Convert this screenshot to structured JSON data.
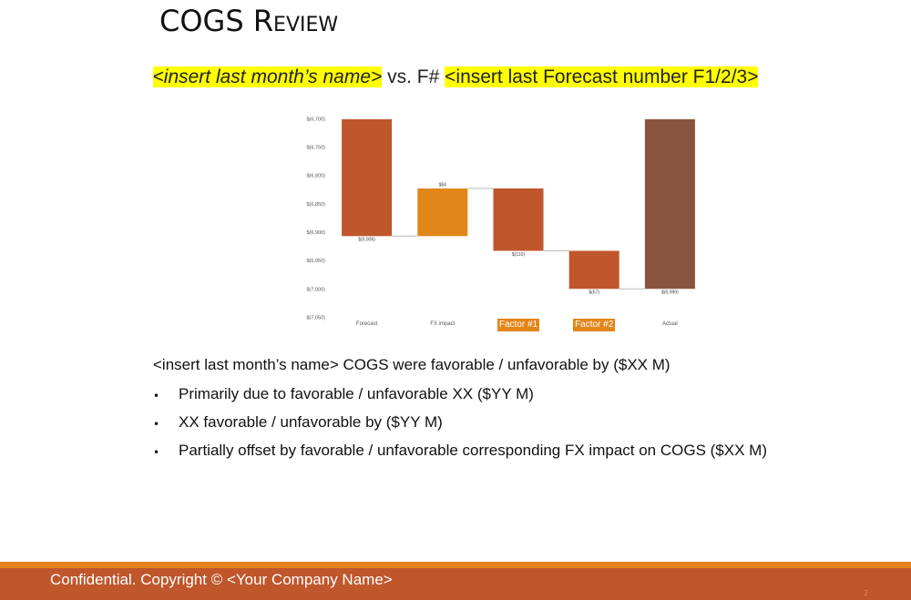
{
  "title": "COGS Review",
  "subtitle": {
    "highlight_left": "<insert last month’s name>",
    "middle": "vs. F#",
    "highlight_right": "<insert last Forecast number F1/2/3>"
  },
  "chart_data": {
    "type": "waterfall",
    "categories": [
      "Forecast",
      "FX impact",
      "Factor #1",
      "Factor #2",
      "Actual"
    ],
    "measures": [
      "total",
      "relative",
      "relative",
      "relative",
      "total"
    ],
    "values": [
      -6906,
      84,
      -110,
      -67,
      -6999
    ],
    "value_labels": [
      "$(6,906)",
      "$84",
      "$(110)",
      "$(67)",
      "$(6,999)"
    ],
    "colors": [
      "#c0562b",
      "#e3861a",
      "#c0562b",
      "#c0562b",
      "#8b5440"
    ],
    "boxed": [
      false,
      false,
      true,
      true,
      false
    ],
    "box_color": "#e3861a",
    "ylim": [
      -7050,
      -6700
    ],
    "yticks": [
      {
        "value": -6700,
        "label": "$(6,700)"
      },
      {
        "value": -6750,
        "label": "$(6,750)"
      },
      {
        "value": -6800,
        "label": "$(6,800)"
      },
      {
        "value": -6850,
        "label": "$(6,850)"
      },
      {
        "value": -6900,
        "label": "$(6,900)"
      },
      {
        "value": -6950,
        "label": "$(6,950)"
      },
      {
        "value": -7000,
        "label": "$(7,000)"
      },
      {
        "value": -7050,
        "label": "$(7,050)"
      }
    ],
    "grid": false
  },
  "summary": "<insert last month’s name> COGS were favorable / unfavorable by ($XX M)",
  "bullets": [
    "Primarily due to favorable / unfavorable XX ($YY M)",
    "XX favorable / unfavorable by ($YY M)",
    "Partially offset by favorable / unfavorable corresponding FX impact on COGS ($XX M)"
  ],
  "footer": "Confidential. Copyright © <Your Company Name>",
  "page_number": "2"
}
